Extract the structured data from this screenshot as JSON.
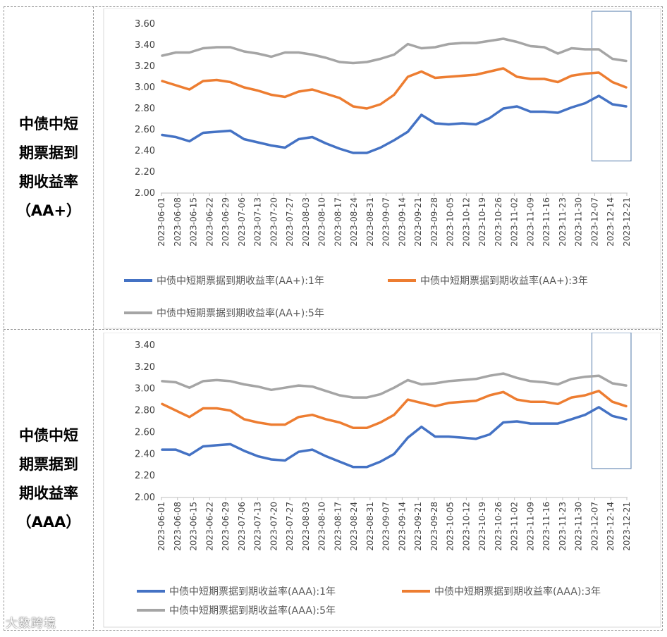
{
  "panels": [
    {
      "label": [
        "中债中短",
        "期票据到",
        "期收益率",
        "（AA+）"
      ],
      "chart_data": {
        "type": "line",
        "ylim": [
          2.0,
          3.6
        ],
        "yticks": [
          "2.00",
          "2.20",
          "2.40",
          "2.60",
          "2.80",
          "3.00",
          "3.20",
          "3.40",
          "3.60"
        ],
        "xticks": [
          "2023-06-01",
          "2023-06-08",
          "2023-06-15",
          "2023-06-22",
          "2023-06-29",
          "2023-07-06",
          "2023-07-13",
          "2023-07-20",
          "2023-07-27",
          "2023-08-03",
          "2023-08-10",
          "2023-08-17",
          "2023-08-24",
          "2023-08-31",
          "2023-09-07",
          "2023-09-14",
          "2023-09-21",
          "2023-09-28",
          "2023-10-05",
          "2023-10-12",
          "2023-10-19",
          "2023-10-26",
          "2023-11-02",
          "2023-11-09",
          "2023-11-16",
          "2023-11-23",
          "2023-11-30",
          "2023-12-07",
          "2023-12-14",
          "2023-12-21"
        ],
        "highlight_range": [
          "2023-12-07",
          "2023-12-21"
        ],
        "series": [
          {
            "name": "中债中短期票据到期收益率(AA+):1年",
            "color": "#4472c4",
            "values": [
              2.55,
              2.53,
              2.49,
              2.57,
              2.58,
              2.59,
              2.51,
              2.48,
              2.45,
              2.43,
              2.51,
              2.53,
              2.47,
              2.42,
              2.38,
              2.38,
              2.43,
              2.5,
              2.58,
              2.74,
              2.66,
              2.65,
              2.66,
              2.65,
              2.71,
              2.8,
              2.82,
              2.77,
              2.77,
              2.76,
              2.81,
              2.85,
              2.92,
              2.84,
              2.82
            ]
          },
          {
            "name": "中债中短期票据到期收益率(AA+):3年",
            "color": "#ed7d31",
            "values": [
              3.06,
              3.02,
              2.98,
              3.06,
              3.07,
              3.05,
              3.0,
              2.97,
              2.93,
              2.91,
              2.96,
              2.98,
              2.94,
              2.9,
              2.82,
              2.8,
              2.84,
              2.93,
              3.1,
              3.15,
              3.09,
              3.1,
              3.11,
              3.12,
              3.15,
              3.18,
              3.1,
              3.08,
              3.08,
              3.05,
              3.11,
              3.13,
              3.14,
              3.05,
              3.0
            ]
          },
          {
            "name": "中债中短期票据到期收益率(AA+):5年",
            "color": "#a5a5a5",
            "values": [
              3.3,
              3.33,
              3.33,
              3.37,
              3.38,
              3.38,
              3.34,
              3.32,
              3.29,
              3.33,
              3.33,
              3.31,
              3.28,
              3.24,
              3.23,
              3.24,
              3.27,
              3.31,
              3.41,
              3.37,
              3.38,
              3.41,
              3.42,
              3.42,
              3.44,
              3.46,
              3.43,
              3.39,
              3.38,
              3.32,
              3.37,
              3.36,
              3.36,
              3.27,
              3.25
            ]
          }
        ]
      }
    },
    {
      "label": [
        "中债中短",
        "期票据到",
        "期收益率",
        "（AAA）"
      ],
      "chart_data": {
        "type": "line",
        "ylim": [
          2.0,
          3.4
        ],
        "yticks": [
          "2.00",
          "2.20",
          "2.40",
          "2.60",
          "2.80",
          "3.00",
          "3.20",
          "3.40"
        ],
        "xticks": [
          "2023-06-01",
          "2023-06-08",
          "2023-06-15",
          "2023-06-22",
          "2023-06-29",
          "2023-07-06",
          "2023-07-13",
          "2023-07-20",
          "2023-07-27",
          "2023-08-03",
          "2023-08-10",
          "2023-08-17",
          "2023-08-24",
          "2023-08-31",
          "2023-09-07",
          "2023-09-14",
          "2023-09-21",
          "2023-09-28",
          "2023-10-05",
          "2023-10-12",
          "2023-10-19",
          "2023-10-26",
          "2023-11-02",
          "2023-11-09",
          "2023-11-16",
          "2023-11-23",
          "2023-11-30",
          "2023-12-07",
          "2023-12-14",
          "2023-12-21"
        ],
        "highlight_range": [
          "2023-12-07",
          "2023-12-21"
        ],
        "series": [
          {
            "name": "中债中短期票据到期收益率(AAA):1年",
            "color": "#4472c4",
            "values": [
              2.44,
              2.44,
              2.39,
              2.47,
              2.48,
              2.49,
              2.43,
              2.38,
              2.35,
              2.34,
              2.42,
              2.44,
              2.38,
              2.33,
              2.28,
              2.28,
              2.33,
              2.4,
              2.55,
              2.65,
              2.56,
              2.56,
              2.55,
              2.54,
              2.58,
              2.69,
              2.7,
              2.68,
              2.68,
              2.68,
              2.72,
              2.76,
              2.83,
              2.75,
              2.72
            ]
          },
          {
            "name": "中债中短期票据到期收益率(AAA):3年",
            "color": "#ed7d31",
            "values": [
              2.86,
              2.8,
              2.74,
              2.82,
              2.82,
              2.8,
              2.72,
              2.69,
              2.67,
              2.67,
              2.74,
              2.76,
              2.72,
              2.69,
              2.64,
              2.64,
              2.69,
              2.76,
              2.9,
              2.87,
              2.84,
              2.87,
              2.88,
              2.89,
              2.94,
              2.97,
              2.9,
              2.88,
              2.88,
              2.86,
              2.92,
              2.94,
              2.98,
              2.88,
              2.84
            ]
          },
          {
            "name": "中债中短期票据到期收益率(AAA):5年",
            "color": "#a5a5a5",
            "values": [
              3.07,
              3.06,
              3.01,
              3.07,
              3.08,
              3.07,
              3.04,
              3.02,
              2.99,
              3.01,
              3.03,
              3.02,
              2.98,
              2.94,
              2.92,
              2.92,
              2.95,
              3.01,
              3.08,
              3.04,
              3.05,
              3.07,
              3.08,
              3.09,
              3.12,
              3.14,
              3.1,
              3.07,
              3.06,
              3.04,
              3.09,
              3.11,
              3.12,
              3.05,
              3.03
            ]
          }
        ]
      }
    }
  ],
  "watermark": "大数跨境"
}
